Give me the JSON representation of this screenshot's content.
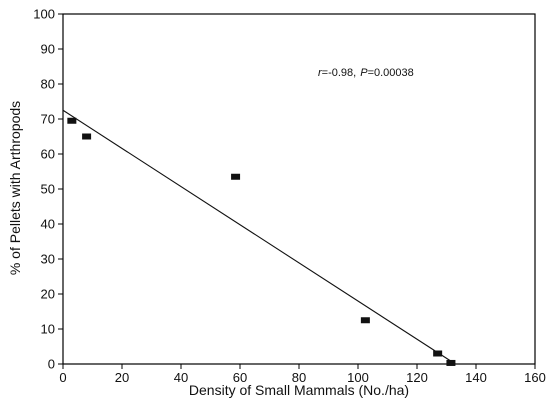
{
  "chart_data": {
    "type": "scatter",
    "title": "",
    "xlabel": "Density of Small Mammals (No./ha)",
    "ylabel": "% of Pellets with Arthropods",
    "xlim": [
      0,
      160
    ],
    "ylim": [
      0,
      100
    ],
    "x_ticks": [
      0,
      20,
      40,
      60,
      80,
      100,
      120,
      140,
      160
    ],
    "y_ticks": [
      0,
      10,
      20,
      30,
      40,
      50,
      60,
      70,
      80,
      90,
      100
    ],
    "grid": false,
    "legend": "none",
    "series": [
      {
        "points": [
          {
            "x": 3,
            "y": 69.5
          },
          {
            "x": 8,
            "y": 65
          },
          {
            "x": 58.5,
            "y": 53.5
          },
          {
            "x": 102.5,
            "y": 12.5
          },
          {
            "x": 127,
            "y": 3
          },
          {
            "x": 131.5,
            "y": 0.3
          }
        ]
      }
    ],
    "regression_line": {
      "x_start": 0,
      "y_start": 72.5,
      "x_end": 133,
      "y_end": 0
    },
    "annotation": {
      "r_symbol": "r",
      "r_value": "=-0.98,",
      "p_symbol": "P",
      "p_value": "=0.00038"
    }
  }
}
